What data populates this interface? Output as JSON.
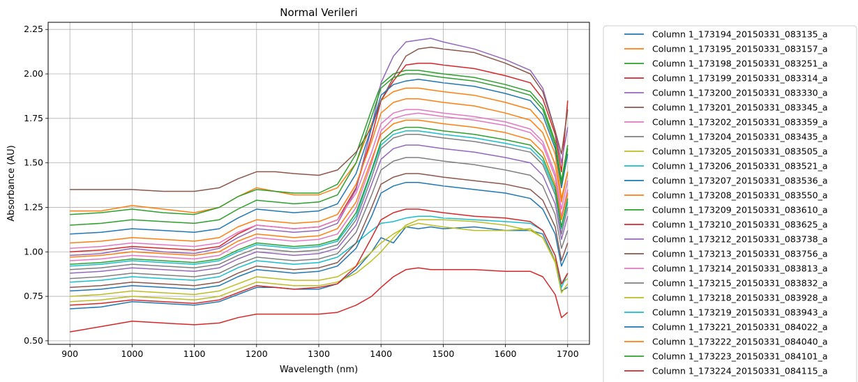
{
  "chart_data": {
    "type": "line",
    "title": "Normal Verileri",
    "xlabel": "Wavelength (nm)",
    "ylabel": "Absorbance (AU)",
    "xlim": [
      865,
      1735
    ],
    "ylim": [
      0.48,
      2.29
    ],
    "xticks": [
      "900",
      "1000",
      "1100",
      "1200",
      "1300",
      "1400",
      "1500",
      "1600",
      "1700"
    ],
    "yticks": [
      "0.50",
      "0.75",
      "1.00",
      "1.25",
      "1.50",
      "1.75",
      "2.00",
      "2.25"
    ],
    "grid": true,
    "legend_position": "outside-right",
    "x": [
      900,
      950,
      1000,
      1050,
      1100,
      1140,
      1170,
      1200,
      1230,
      1260,
      1300,
      1330,
      1360,
      1385,
      1400,
      1420,
      1440,
      1460,
      1480,
      1500,
      1550,
      1600,
      1640,
      1660,
      1680,
      1690,
      1700
    ],
    "series": [
      {
        "name": "Column 1_173194_20150331_083135_a",
        "color": "#1f77b4",
        "values": [
          0.68,
          0.69,
          0.72,
          0.71,
          0.7,
          0.72,
          0.76,
          0.8,
          0.8,
          0.79,
          0.79,
          0.82,
          0.9,
          1.0,
          1.08,
          1.05,
          1.14,
          1.13,
          1.14,
          1.13,
          1.14,
          1.12,
          1.12,
          1.1,
          0.95,
          0.78,
          0.8
        ]
      },
      {
        "name": "Column 1_173195_20150331_083157_a",
        "color": "#ff7f0e",
        "values": [
          1.23,
          1.23,
          1.26,
          1.24,
          1.22,
          1.25,
          1.31,
          1.36,
          1.34,
          1.32,
          1.32,
          1.36,
          1.5,
          1.72,
          1.85,
          1.9,
          1.92,
          1.92,
          1.91,
          1.9,
          1.88,
          1.84,
          1.8,
          1.72,
          1.55,
          1.3,
          1.45
        ]
      },
      {
        "name": "Column 1_173198_20150331_083251_a",
        "color": "#2ca02c",
        "values": [
          1.21,
          1.22,
          1.24,
          1.22,
          1.21,
          1.25,
          1.31,
          1.35,
          1.34,
          1.33,
          1.33,
          1.38,
          1.55,
          1.8,
          1.94,
          2.0,
          2.02,
          2.02,
          2.01,
          2.0,
          1.98,
          1.94,
          1.9,
          1.82,
          1.62,
          1.4,
          1.6
        ]
      },
      {
        "name": "Column 1_173199_20150331_083314_a",
        "color": "#d62728",
        "values": [
          1.0,
          1.01,
          1.03,
          1.02,
          1.01,
          1.03,
          1.1,
          1.15,
          1.14,
          1.13,
          1.14,
          1.18,
          1.36,
          1.65,
          1.85,
          1.96,
          2.05,
          2.06,
          2.06,
          2.05,
          2.03,
          1.99,
          1.95,
          1.86,
          1.66,
          1.45,
          1.85
        ]
      },
      {
        "name": "Column 1_173200_20150331_083330_a",
        "color": "#9467bd",
        "values": [
          0.98,
          0.99,
          1.02,
          1.0,
          0.99,
          1.02,
          1.08,
          1.13,
          1.12,
          1.11,
          1.12,
          1.16,
          1.35,
          1.7,
          1.95,
          2.1,
          2.18,
          2.19,
          2.2,
          2.18,
          2.14,
          2.08,
          2.02,
          1.92,
          1.68,
          1.5,
          1.7
        ]
      },
      {
        "name": "Column 1_173201_20150331_083345_a",
        "color": "#8c564b",
        "values": [
          1.35,
          1.35,
          1.35,
          1.34,
          1.34,
          1.36,
          1.41,
          1.45,
          1.45,
          1.44,
          1.43,
          1.46,
          1.56,
          1.7,
          1.85,
          1.98,
          2.1,
          2.14,
          2.15,
          2.14,
          2.12,
          2.06,
          2.0,
          1.9,
          1.68,
          1.55,
          1.8
        ]
      },
      {
        "name": "Column 1_173202_20150331_083359_a",
        "color": "#e377c2",
        "values": [
          0.95,
          0.96,
          0.98,
          0.97,
          0.96,
          0.98,
          1.04,
          1.08,
          1.07,
          1.06,
          1.07,
          1.1,
          1.25,
          1.5,
          1.68,
          1.75,
          1.77,
          1.78,
          1.77,
          1.76,
          1.74,
          1.71,
          1.67,
          1.6,
          1.42,
          1.2,
          1.35
        ]
      },
      {
        "name": "Column 1_173204_20150331_083435_a",
        "color": "#7f7f7f",
        "values": [
          0.9,
          0.91,
          0.93,
          0.92,
          0.91,
          0.93,
          0.98,
          1.02,
          1.01,
          1.0,
          1.01,
          1.04,
          1.18,
          1.42,
          1.58,
          1.64,
          1.66,
          1.66,
          1.65,
          1.64,
          1.62,
          1.59,
          1.56,
          1.49,
          1.32,
          1.1,
          1.25
        ]
      },
      {
        "name": "Column 1_173205_20150331_083505_a",
        "color": "#bcbd22",
        "values": [
          0.75,
          0.76,
          0.78,
          0.77,
          0.76,
          0.78,
          0.82,
          0.86,
          0.85,
          0.84,
          0.84,
          0.86,
          0.92,
          1.0,
          1.05,
          1.1,
          1.14,
          1.16,
          1.15,
          1.14,
          1.12,
          1.12,
          1.13,
          1.08,
          0.95,
          0.82,
          0.85
        ]
      },
      {
        "name": "Column 1_173206_20150331_083521_a",
        "color": "#17becf",
        "values": [
          0.83,
          0.84,
          0.86,
          0.85,
          0.84,
          0.86,
          0.91,
          0.95,
          0.94,
          0.93,
          0.94,
          0.97,
          1.05,
          1.12,
          1.16,
          1.17,
          1.19,
          1.2,
          1.2,
          1.19,
          1.18,
          1.17,
          1.16,
          1.12,
          0.98,
          0.8,
          0.88
        ]
      },
      {
        "name": "Column 1_173207_20150331_083536_a",
        "color": "#1f77b4",
        "values": [
          1.1,
          1.11,
          1.13,
          1.12,
          1.11,
          1.13,
          1.19,
          1.24,
          1.23,
          1.22,
          1.23,
          1.27,
          1.44,
          1.7,
          1.88,
          1.94,
          1.96,
          1.97,
          1.96,
          1.95,
          1.93,
          1.89,
          1.85,
          1.77,
          1.58,
          1.36,
          1.55
        ]
      },
      {
        "name": "Column 1_173208_20150331_083550_a",
        "color": "#ff7f0e",
        "values": [
          1.05,
          1.06,
          1.08,
          1.07,
          1.06,
          1.08,
          1.14,
          1.18,
          1.17,
          1.16,
          1.17,
          1.21,
          1.38,
          1.62,
          1.78,
          1.84,
          1.86,
          1.86,
          1.85,
          1.84,
          1.82,
          1.78,
          1.74,
          1.67,
          1.49,
          1.28,
          1.45
        ]
      },
      {
        "name": "Column 1_173209_20150331_083610_a",
        "color": "#2ca02c",
        "values": [
          1.15,
          1.16,
          1.18,
          1.17,
          1.16,
          1.18,
          1.24,
          1.29,
          1.28,
          1.27,
          1.28,
          1.32,
          1.5,
          1.76,
          1.92,
          1.98,
          2.0,
          2.0,
          1.99,
          1.98,
          1.96,
          1.92,
          1.88,
          1.8,
          1.6,
          1.38,
          1.58
        ]
      },
      {
        "name": "Column 1_173210_20150331_083625_a",
        "color": "#d62728",
        "values": [
          0.55,
          0.58,
          0.61,
          0.6,
          0.59,
          0.6,
          0.63,
          0.65,
          0.65,
          0.65,
          0.65,
          0.66,
          0.7,
          0.75,
          0.8,
          0.86,
          0.9,
          0.91,
          0.9,
          0.9,
          0.9,
          0.89,
          0.89,
          0.86,
          0.76,
          0.63,
          0.66
        ]
      },
      {
        "name": "Column 1_173212_20150331_083738_a",
        "color": "#9467bd",
        "values": [
          0.88,
          0.89,
          0.91,
          0.9,
          0.89,
          0.91,
          0.96,
          1.0,
          0.99,
          0.98,
          0.99,
          1.02,
          1.15,
          1.38,
          1.52,
          1.58,
          1.6,
          1.6,
          1.59,
          1.58,
          1.56,
          1.53,
          1.5,
          1.43,
          1.27,
          1.07,
          1.2
        ]
      },
      {
        "name": "Column 1_173213_20150331_083756_a",
        "color": "#8c564b",
        "values": [
          0.8,
          0.81,
          0.83,
          0.82,
          0.81,
          0.83,
          0.88,
          0.92,
          0.91,
          0.9,
          0.91,
          0.94,
          1.05,
          1.25,
          1.38,
          1.42,
          1.44,
          1.44,
          1.43,
          1.42,
          1.4,
          1.38,
          1.35,
          1.29,
          1.14,
          0.95,
          1.05
        ]
      },
      {
        "name": "Column 1_173214_20150331_083813_a",
        "color": "#e377c2",
        "values": [
          1.02,
          1.03,
          1.05,
          1.04,
          1.03,
          1.05,
          1.11,
          1.15,
          1.14,
          1.13,
          1.14,
          1.18,
          1.33,
          1.56,
          1.72,
          1.78,
          1.8,
          1.8,
          1.79,
          1.78,
          1.76,
          1.73,
          1.69,
          1.62,
          1.44,
          1.24,
          1.4
        ]
      },
      {
        "name": "Column 1_173215_20150331_083832_a",
        "color": "#7f7f7f",
        "values": [
          0.85,
          0.86,
          0.88,
          0.87,
          0.86,
          0.88,
          0.93,
          0.97,
          0.96,
          0.95,
          0.96,
          0.99,
          1.11,
          1.32,
          1.46,
          1.51,
          1.53,
          1.53,
          1.52,
          1.51,
          1.49,
          1.46,
          1.43,
          1.37,
          1.21,
          1.02,
          1.12
        ]
      },
      {
        "name": "Column 1_173218_20150331_083928_a",
        "color": "#bcbd22",
        "values": [
          0.72,
          0.73,
          0.75,
          0.74,
          0.73,
          0.75,
          0.79,
          0.83,
          0.82,
          0.81,
          0.81,
          0.83,
          0.88,
          0.95,
          1.0,
          1.08,
          1.15,
          1.18,
          1.18,
          1.18,
          1.17,
          1.15,
          1.12,
          1.08,
          0.94,
          0.77,
          0.82
        ]
      },
      {
        "name": "Column 1_173219_20150331_083943_a",
        "color": "#17becf",
        "values": [
          0.92,
          0.93,
          0.95,
          0.94,
          0.93,
          0.95,
          1.0,
          1.04,
          1.03,
          1.02,
          1.03,
          1.06,
          1.2,
          1.45,
          1.6,
          1.66,
          1.68,
          1.68,
          1.67,
          1.66,
          1.64,
          1.61,
          1.58,
          1.51,
          1.34,
          1.13,
          1.28
        ]
      },
      {
        "name": "Column 1_173221_20150331_084022_a",
        "color": "#1f77b4",
        "values": [
          0.78,
          0.79,
          0.81,
          0.8,
          0.79,
          0.81,
          0.86,
          0.9,
          0.89,
          0.88,
          0.89,
          0.92,
          1.02,
          1.2,
          1.33,
          1.37,
          1.39,
          1.39,
          1.38,
          1.37,
          1.35,
          1.33,
          1.3,
          1.24,
          1.1,
          0.92,
          1.0
        ]
      },
      {
        "name": "Column 1_173222_20150331_084040_a",
        "color": "#ff7f0e",
        "values": [
          0.97,
          0.98,
          1.0,
          0.99,
          0.98,
          1.0,
          1.06,
          1.1,
          1.09,
          1.08,
          1.09,
          1.13,
          1.28,
          1.52,
          1.66,
          1.72,
          1.74,
          1.74,
          1.73,
          1.72,
          1.7,
          1.67,
          1.63,
          1.56,
          1.38,
          1.18,
          1.33
        ]
      },
      {
        "name": "Column 1_173223_20150331_084101_a",
        "color": "#2ca02c",
        "values": [
          0.93,
          0.94,
          0.96,
          0.95,
          0.94,
          0.96,
          1.01,
          1.05,
          1.04,
          1.03,
          1.04,
          1.07,
          1.22,
          1.46,
          1.62,
          1.68,
          1.7,
          1.7,
          1.69,
          1.68,
          1.66,
          1.63,
          1.6,
          1.53,
          1.36,
          1.14,
          1.3
        ]
      },
      {
        "name": "Column 1_173224_20150331_084115_a",
        "color": "#d62728",
        "values": [
          0.7,
          0.71,
          0.73,
          0.72,
          0.71,
          0.73,
          0.77,
          0.81,
          0.8,
          0.79,
          0.8,
          0.82,
          0.92,
          1.08,
          1.18,
          1.22,
          1.24,
          1.24,
          1.23,
          1.22,
          1.2,
          1.19,
          1.17,
          1.12,
          0.98,
          0.82,
          0.88
        ]
      }
    ]
  }
}
